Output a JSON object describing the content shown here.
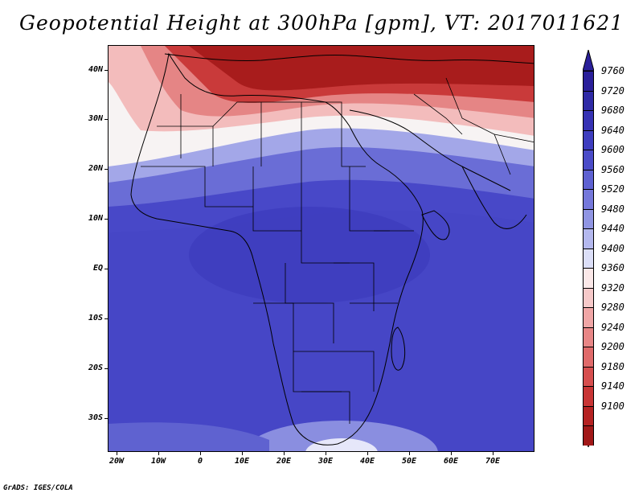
{
  "title": "Geopotential Height at 300hPa [gpm], VT: 2017011621",
  "lat_labels": [
    "40N",
    "30N",
    "20N",
    "10N",
    "EQ",
    "10S",
    "20S",
    "30S"
  ],
  "lon_labels": [
    "20W",
    "10W",
    "0",
    "10E",
    "20E",
    "30E",
    "40E",
    "50E",
    "60E",
    "70E"
  ],
  "colorbar": {
    "levels": [
      "9760",
      "9720",
      "9680",
      "9640",
      "9600",
      "9560",
      "9520",
      "9480",
      "9440",
      "9400",
      "9360",
      "9320",
      "9280",
      "9240",
      "9200",
      "9180",
      "9140",
      "9100"
    ],
    "colors": [
      "#2a1f9a",
      "#2f2aa6",
      "#3632b4",
      "#3e3dbf",
      "#4a4bc8",
      "#5e61d2",
      "#7578db",
      "#9095e3",
      "#b4b8ee",
      "#dcdff8",
      "#fbe8e8",
      "#f6c9c9",
      "#f0a6a6",
      "#e88686",
      "#e06a6a",
      "#d64e4e",
      "#c83535",
      "#b52222",
      "#a11818"
    ]
  },
  "credit": "GrADS: IGES/COLA",
  "map": {
    "field_colors": {
      "deep_red": "#a81c1c",
      "red": "#cc3b3b",
      "light_red": "#e88a8a",
      "pink": "#f6c6c6",
      "white": "#fbf7f7",
      "light_blue": "#b8bbee",
      "blue": "#6265d3",
      "deep_blue": "#4646c6",
      "darker_blue": "#3a38ba"
    }
  }
}
